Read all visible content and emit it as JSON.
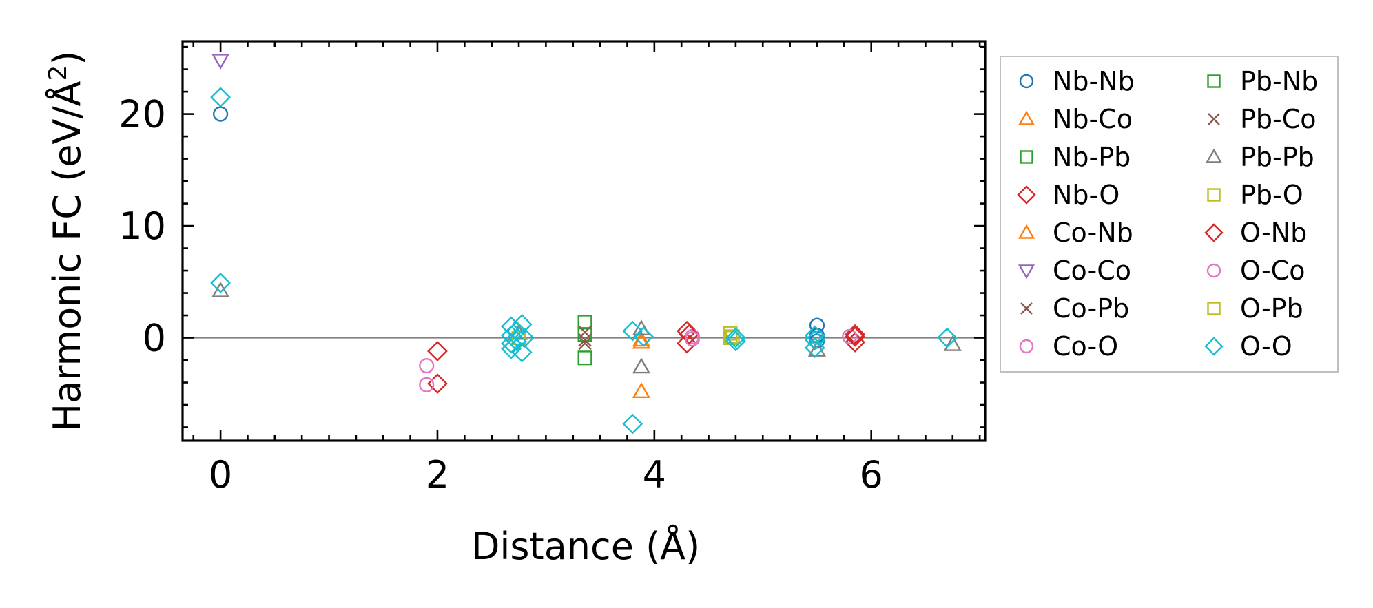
{
  "chart_data": {
    "type": "scatter",
    "title": "",
    "xlabel": "Distance (Å)",
    "ylabel_main": "Harmonic FC (eV/Å",
    "ylabel_sup": "2",
    "ylabel_end": ")",
    "xlim": [
      -0.35,
      7.05
    ],
    "ylim": [
      -9.2,
      26.5
    ],
    "xticks": [
      0,
      2,
      4,
      6
    ],
    "yticks": [
      0,
      10,
      20
    ],
    "xtick_labels": [
      "0",
      "2",
      "4",
      "6"
    ],
    "ytick_labels": [
      "0",
      "10",
      "20"
    ],
    "zero_line": true,
    "legend_position": "outside-right",
    "series": [
      {
        "name": "Nb-Nb",
        "marker": "circle",
        "color": "#1f77b4",
        "points": [
          [
            0,
            20.0
          ],
          [
            5.5,
            1.1
          ],
          [
            5.5,
            0.2
          ],
          [
            5.5,
            -0.3
          ]
        ]
      },
      {
        "name": "Nb-Co",
        "marker": "triangle-up",
        "color": "#ff7f0e",
        "points": [
          [
            3.88,
            -4.8
          ],
          [
            3.88,
            -0.4
          ]
        ]
      },
      {
        "name": "Nb-Pb",
        "marker": "square",
        "color": "#2ca02c",
        "points": [
          [
            3.36,
            1.4
          ],
          [
            3.36,
            -1.8
          ]
        ]
      },
      {
        "name": "Nb-O",
        "marker": "diamond",
        "color": "#d62728",
        "points": [
          [
            2.0,
            -1.2
          ],
          [
            2.0,
            -4.1
          ],
          [
            4.3,
            0.6
          ],
          [
            4.3,
            -0.5
          ],
          [
            5.85,
            0.3
          ],
          [
            5.85,
            -0.4
          ]
        ]
      },
      {
        "name": "Co-Nb",
        "marker": "triangle-up",
        "color": "#ff7f0e",
        "points": [
          [
            3.88,
            -0.2
          ]
        ]
      },
      {
        "name": "Co-Co",
        "marker": "triangle-down",
        "color": "#9467bd",
        "points": [
          [
            0,
            24.8
          ]
        ]
      },
      {
        "name": "Co-Pb",
        "marker": "x",
        "color": "#8c564b",
        "points": [
          [
            3.36,
            0.5
          ],
          [
            3.36,
            -0.5
          ]
        ]
      },
      {
        "name": "Co-O",
        "marker": "circle",
        "color": "#e377c2",
        "points": [
          [
            1.9,
            -2.5
          ],
          [
            1.9,
            -4.2
          ],
          [
            4.35,
            0.1
          ],
          [
            5.8,
            0.1
          ]
        ]
      },
      {
        "name": "Pb-Nb",
        "marker": "square",
        "color": "#2ca02c",
        "points": [
          [
            3.36,
            0.3
          ]
        ]
      },
      {
        "name": "Pb-Co",
        "marker": "x",
        "color": "#8c564b",
        "points": [
          [
            3.36,
            -0.2
          ]
        ]
      },
      {
        "name": "Pb-Pb",
        "marker": "triangle-up",
        "color": "#7f7f7f",
        "points": [
          [
            0,
            4.2
          ],
          [
            3.88,
            -2.6
          ],
          [
            3.88,
            0.8
          ],
          [
            5.5,
            -1.1
          ],
          [
            6.75,
            -0.6
          ],
          [
            2.75,
            0.4
          ]
        ]
      },
      {
        "name": "Pb-O",
        "marker": "square",
        "color": "#bcbd22",
        "points": [
          [
            4.7,
            0.4
          ],
          [
            4.7,
            0.0
          ],
          [
            2.75,
            0.0
          ]
        ]
      },
      {
        "name": "O-Nb",
        "marker": "diamond",
        "color": "#d62728",
        "points": [
          [
            4.32,
            0.3
          ],
          [
            5.85,
            0.1
          ]
        ]
      },
      {
        "name": "O-Co",
        "marker": "circle",
        "color": "#e377c2",
        "points": [
          [
            4.35,
            -0.1
          ]
        ]
      },
      {
        "name": "O-Pb",
        "marker": "square",
        "color": "#bcbd22",
        "points": [
          [
            4.72,
            0.1
          ]
        ]
      },
      {
        "name": "O-O",
        "marker": "diamond",
        "color": "#17becf",
        "points": [
          [
            0,
            21.5
          ],
          [
            0,
            4.9
          ],
          [
            2.68,
            1.0
          ],
          [
            2.68,
            0.2
          ],
          [
            2.68,
            -0.5
          ],
          [
            2.68,
            -1.0
          ],
          [
            2.73,
            0.6
          ],
          [
            2.73,
            -0.3
          ],
          [
            2.78,
            1.2
          ],
          [
            2.78,
            -1.3
          ],
          [
            2.8,
            0.0
          ],
          [
            3.8,
            0.6
          ],
          [
            3.8,
            -7.7
          ],
          [
            3.9,
            0.1
          ],
          [
            4.75,
            0.0
          ],
          [
            4.75,
            -0.3
          ],
          [
            5.48,
            0.2
          ],
          [
            5.48,
            -0.2
          ],
          [
            5.48,
            -0.9
          ],
          [
            6.7,
            0.0
          ]
        ]
      }
    ]
  }
}
